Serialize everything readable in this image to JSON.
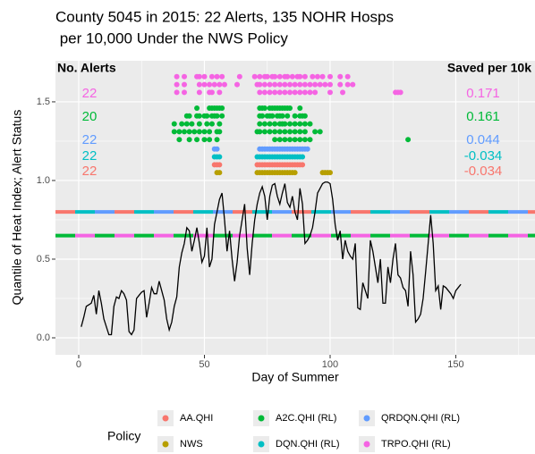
{
  "chart_data": {
    "type": "line",
    "title": "County 5045 in 2015: 22 Alerts, 135 NOHR Hosps",
    "subtitle": " per 10,000 Under the NWS Policy",
    "x_label": "Day of Summer",
    "y_label": "Quantile of Heat Index; Alert Status",
    "xlim": [
      -9.25,
      181.5
    ],
    "ylim": [
      -0.108,
      1.761
    ],
    "xticks": [
      0,
      50,
      100,
      150
    ],
    "yticks": [
      {
        "value": 0,
        "label": "0.0"
      },
      {
        "value": 0.5,
        "label": "0.5"
      },
      {
        "value": 1,
        "label": "1.0"
      },
      {
        "value": 1.5,
        "label": "1.5"
      }
    ],
    "x_minor_grid": [
      25,
      75,
      125,
      175
    ],
    "y_minor_grid": [
      0.25,
      0.75,
      1.25
    ],
    "grid": true,
    "heat_index": {
      "color": "#000000",
      "x": [
        1,
        2,
        3,
        4,
        5,
        6,
        7,
        8,
        9,
        10,
        11,
        12,
        13,
        14,
        15,
        16,
        17,
        18,
        19,
        20,
        21,
        22,
        23,
        24,
        25,
        26,
        27,
        28,
        29,
        30,
        31,
        32,
        33,
        34,
        35,
        36,
        37,
        38,
        39,
        40,
        41,
        42,
        43,
        44,
        45,
        46,
        47,
        48,
        49,
        50,
        51,
        52,
        53,
        54,
        55,
        56,
        57,
        58,
        59,
        60,
        61,
        62,
        63,
        64,
        65,
        66,
        67,
        68,
        69,
        70,
        71,
        72,
        73,
        74,
        75,
        76,
        77,
        78,
        79,
        80,
        81,
        82,
        83,
        84,
        85,
        86,
        87,
        88,
        89,
        90,
        91,
        92,
        93,
        94,
        95,
        96,
        97,
        98,
        99,
        100,
        101,
        102,
        103,
        104,
        105,
        106,
        107,
        108,
        109,
        110,
        111,
        112,
        113,
        114,
        115,
        116,
        117,
        118,
        119,
        120,
        121,
        122,
        123,
        124,
        125,
        126,
        127,
        128,
        129,
        130,
        131,
        132,
        133,
        134,
        135,
        136,
        137,
        138,
        139,
        140,
        141,
        142,
        143,
        144,
        145,
        146,
        147,
        148,
        149,
        150,
        151,
        152
      ],
      "values": [
        0.07,
        0.13,
        0.2,
        0.21,
        0.22,
        0.27,
        0.15,
        0.3,
        0.22,
        0.12,
        0.07,
        0.02,
        0.02,
        0.2,
        0.26,
        0.25,
        0.3,
        0.28,
        0.24,
        0.04,
        0.02,
        0.05,
        0.25,
        0.27,
        0.29,
        0.3,
        0.13,
        0.22,
        0.32,
        0.28,
        0.28,
        0.36,
        0.3,
        0.24,
        0.12,
        0.05,
        0.1,
        0.2,
        0.26,
        0.45,
        0.54,
        0.6,
        0.7,
        0.68,
        0.55,
        0.62,
        0.7,
        0.6,
        0.48,
        0.52,
        0.7,
        0.45,
        0.5,
        0.72,
        0.8,
        0.88,
        0.92,
        0.75,
        0.55,
        0.68,
        0.5,
        0.36,
        0.48,
        0.65,
        0.75,
        0.85,
        0.57,
        0.4,
        0.6,
        0.75,
        0.85,
        0.92,
        0.96,
        0.9,
        0.75,
        0.9,
        0.97,
        0.98,
        0.9,
        0.85,
        0.92,
        0.98,
        0.86,
        0.83,
        0.9,
        0.8,
        0.75,
        0.95,
        0.85,
        0.6,
        0.62,
        0.65,
        0.7,
        0.8,
        0.92,
        0.95,
        0.98,
        0.99,
        0.99,
        0.98,
        0.88,
        0.72,
        0.62,
        0.68,
        0.5,
        0.62,
        0.55,
        0.52,
        0.5,
        0.6,
        0.19,
        0.18,
        0.35,
        0.3,
        0.25,
        0.62,
        0.55,
        0.45,
        0.35,
        0.5,
        0.22,
        0.22,
        0.45,
        0.35,
        0.5,
        0.6,
        0.4,
        0.38,
        0.32,
        0.3,
        0.2,
        0.55,
        0.4,
        0.1,
        0.12,
        0.15,
        0.25,
        0.42,
        0.6,
        0.78,
        0.6,
        0.3,
        0.33,
        0.18,
        0.33,
        0.32,
        0.3,
        0.28,
        0.25,
        0.3,
        0.32,
        0.34
      ]
    },
    "reference_lines": [
      {
        "value": 0.8,
        "colors": [
          "#F8766D",
          "#00BFC4",
          "#619CFF"
        ]
      },
      {
        "value": 0.65,
        "colors": [
          "#00BA38",
          "#F564E3"
        ]
      }
    ],
    "legend_title": "Policy",
    "series": [
      {
        "name": "AA.QHI",
        "color": "#F8766D",
        "rows": [
          {
            "y": 1.1,
            "x": [
              54,
              55,
              56,
              71,
              72,
              73,
              74,
              75,
              76,
              77,
              78,
              79,
              80,
              81,
              82,
              83,
              84,
              85,
              86,
              87,
              88,
              89
            ]
          }
        ]
      },
      {
        "name": "NWS",
        "color": "#B79F00",
        "rows": [
          {
            "y": 1.05,
            "x": [
              55,
              56,
              71,
              72,
              73,
              74,
              75,
              76,
              77,
              78,
              79,
              80,
              81,
              82,
              83,
              84,
              85,
              86,
              97,
              98,
              99,
              100
            ]
          }
        ]
      },
      {
        "name": "A2C.QHI (RL)",
        "color": "#00BA38",
        "rows": [
          {
            "y": 1.46,
            "x": [
              47,
              52,
              53,
              54,
              55,
              56,
              57,
              72,
              73,
              74,
              76,
              77,
              78,
              79,
              80,
              81,
              82,
              83,
              84,
              88
            ]
          },
          {
            "y": 1.41,
            "x": [
              43,
              44,
              47,
              48,
              50,
              51,
              53,
              54,
              55,
              57,
              72,
              73,
              75,
              76,
              77,
              79,
              80,
              81,
              83,
              86,
              88,
              89,
              90
            ]
          },
          {
            "y": 1.36,
            "x": [
              38,
              41,
              43,
              45,
              48,
              51,
              53,
              56,
              72,
              74,
              76,
              78,
              80,
              81,
              82,
              84,
              86,
              88,
              90,
              92
            ]
          },
          {
            "y": 1.31,
            "x": [
              38,
              40,
              42,
              44,
              46,
              48,
              50,
              52,
              55,
              56,
              71,
              72,
              74,
              76,
              78,
              80,
              82,
              84,
              86,
              88,
              90,
              94,
              96
            ]
          },
          {
            "y": 1.26,
            "x": [
              40,
              44,
              47,
              50,
              52,
              55,
              78,
              80,
              82,
              84,
              86,
              88,
              90,
              92,
              131
            ]
          }
        ]
      },
      {
        "name": "DQN.QHI (RL)",
        "color": "#00BFC4",
        "rows": [
          {
            "y": 1.15,
            "x": [
              54,
              55,
              56,
              71,
              72,
              73,
              74,
              75,
              76,
              77,
              78,
              79,
              80,
              81,
              82,
              83,
              84,
              85,
              86,
              87,
              88,
              89
            ]
          }
        ]
      },
      {
        "name": "QRDQN.QHI (RL)",
        "color": "#619CFF",
        "rows": [
          {
            "y": 1.2,
            "x": [
              54,
              55,
              72,
              73,
              74,
              75,
              76,
              77,
              78,
              79,
              80,
              81,
              82,
              83,
              84,
              85,
              86,
              87,
              88,
              89,
              90,
              91
            ]
          }
        ]
      },
      {
        "name": "TRPO.QHI (RL)",
        "color": "#F564E3",
        "rows": [
          {
            "y": 1.66,
            "x": [
              39,
              42,
              47,
              48,
              50,
              53,
              55,
              57,
              64,
              70,
              72,
              74,
              75,
              77,
              78,
              80,
              82,
              83,
              85,
              87,
              88,
              90,
              93,
              95,
              97,
              100,
              104,
              107
            ]
          },
          {
            "y": 1.61,
            "x": [
              39,
              42,
              48,
              50,
              52,
              54,
              56,
              58,
              63,
              71,
              72,
              74,
              76,
              78,
              80,
              82,
              84,
              86,
              88,
              90,
              92,
              94,
              96,
              98,
              100,
              104,
              107,
              109
            ]
          },
          {
            "y": 1.56,
            "x": [
              39,
              42,
              48,
              52,
              53,
              56,
              72,
              74,
              76,
              78,
              80,
              82,
              84,
              86,
              88,
              90,
              92,
              94,
              100,
              105,
              126,
              127,
              128
            ]
          }
        ]
      }
    ],
    "annotations": {
      "alerts_header": "No. Alerts",
      "saved_header": "Saved per 10k",
      "rows": [
        {
          "alerts": 22,
          "saved": 0.171,
          "color": "#F564E3"
        },
        {
          "alerts": 20,
          "saved": 0.161,
          "color": "#00BA38"
        },
        {
          "alerts": 22,
          "saved": 0.044,
          "color": "#619CFF"
        },
        {
          "alerts": 22,
          "saved": -0.034,
          "color": "#00BFC4"
        },
        {
          "alerts": 22,
          "saved": -0.034,
          "color": "#F8766D"
        }
      ]
    }
  }
}
